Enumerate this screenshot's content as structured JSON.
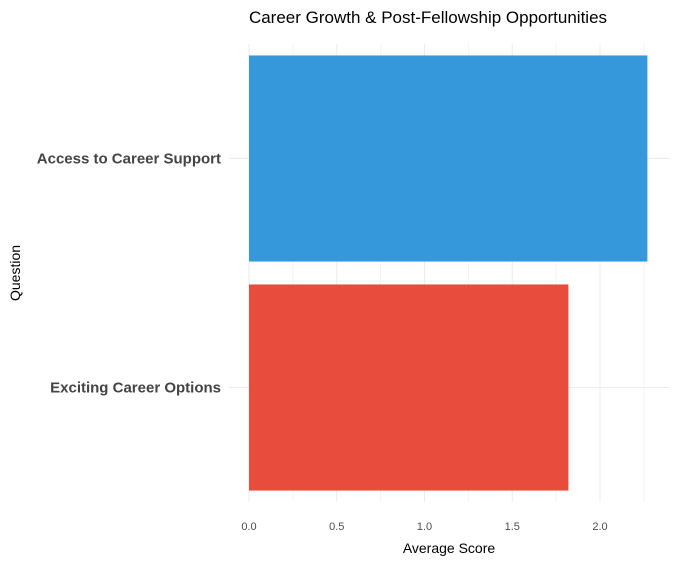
{
  "chart_data": {
    "type": "bar",
    "orientation": "horizontal",
    "title": "Career Growth & Post-Fellowship Opportunities",
    "xlabel": "Average Score",
    "ylabel": "Question",
    "categories": [
      "Access to Career Support",
      "Exciting Career Options"
    ],
    "values": [
      2.27,
      1.82
    ],
    "colors": [
      "#3498db",
      "#e74c3c"
    ],
    "xlim": [
      0,
      2.27
    ],
    "xticks": [
      "0.0",
      "0.5",
      "1.0",
      "1.5",
      "2.0"
    ],
    "grid": true,
    "legend": "none"
  }
}
